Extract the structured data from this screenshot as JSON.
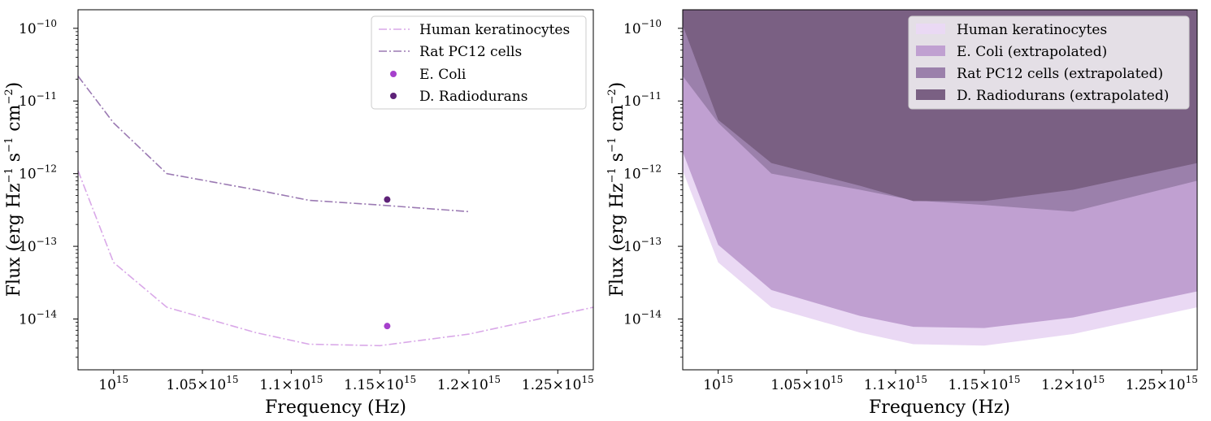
{
  "chart_data": [
    {
      "type": "line",
      "title": "",
      "xlabel": "Frequency (Hz)",
      "ylabel": "Flux (erg Hz^-1 s^-1 cm^-2)",
      "ylabel_parts": {
        "main": "Flux (erg Hz",
        "e1": "−1",
        "s": " s",
        "e2": "−1",
        "cm": " cm",
        "e3": "−2",
        "close": ")"
      },
      "yscale": "log",
      "xlim": [
        980000000000000.0,
        1270000000000000.0
      ],
      "ylim": [
        2e-15,
        1.8e-10
      ],
      "x_ticks": [
        {
          "value": 1000000000000000.0,
          "label": "10^15",
          "base": "10",
          "exp": "15"
        },
        {
          "value": 1050000000000000.0,
          "label": "1.05×10^15",
          "base": "1.05×10",
          "exp": "15"
        },
        {
          "value": 1100000000000000.0,
          "label": "1.1×10^15",
          "base": "1.1×10",
          "exp": "15"
        },
        {
          "value": 1150000000000000.0,
          "label": "1.15×10^15",
          "base": "1.15×10",
          "exp": "15"
        },
        {
          "value": 1200000000000000.0,
          "label": "1.2×10^15",
          "base": "1.2×10",
          "exp": "15"
        },
        {
          "value": 1250000000000000.0,
          "label": "1.25×10^15",
          "base": "1.25×10",
          "exp": "15"
        }
      ],
      "y_ticks": [
        {
          "value": 1e-14,
          "label": "10^-14",
          "base": "10",
          "exp": "−14"
        },
        {
          "value": 1e-13,
          "label": "10^-13",
          "base": "10",
          "exp": "−13"
        },
        {
          "value": 1e-12,
          "label": "10^-12",
          "base": "10",
          "exp": "−12"
        },
        {
          "value": 1e-11,
          "label": "10^-11",
          "base": "10",
          "exp": "−11"
        },
        {
          "value": 1e-10,
          "label": "10^-10",
          "base": "10",
          "exp": "−10"
        }
      ],
      "legend_position": "top-right",
      "series": [
        {
          "name": "Human keratinocytes",
          "kind": "line",
          "color": "#d9a8e8",
          "x": [
            980000000000000.0,
            1000000000000000.0,
            1030000000000000.0,
            1080000000000000.0,
            1110000000000000.0,
            1150000000000000.0,
            1200000000000000.0,
            1270000000000000.0
          ],
          "y": [
            1.1e-12,
            6e-14,
            1.45e-14,
            6.5e-15,
            4.5e-15,
            4.3e-15,
            6.2e-15,
            1.45e-14
          ]
        },
        {
          "name": "Rat PC12 cells",
          "kind": "line",
          "color": "#9b7ab3",
          "x": [
            980000000000000.0,
            1000000000000000.0,
            1030000000000000.0,
            1080000000000000.0,
            1110000000000000.0,
            1150000000000000.0,
            1200000000000000.0
          ],
          "y": [
            2.2e-11,
            5e-12,
            1e-12,
            6e-13,
            4.3e-13,
            3.7e-13,
            3e-13
          ]
        },
        {
          "name": "E. Coli",
          "kind": "point",
          "color": "#a640cc",
          "x": [
            1154000000000000.0
          ],
          "y": [
            8e-15
          ]
        },
        {
          "name": "D. Radiodurans",
          "kind": "point",
          "color": "#5e2278",
          "x": [
            1154000000000000.0
          ],
          "y": [
            4.4e-13
          ]
        }
      ]
    },
    {
      "type": "area",
      "title": "",
      "xlabel": "Frequency (Hz)",
      "ylabel": "Flux (erg Hz^-1 s^-1 cm^-2)",
      "ylabel_parts": {
        "main": "Flux (erg Hz",
        "e1": "−1",
        "s": " s",
        "e2": "−1",
        "cm": " cm",
        "e3": "−2",
        "close": ")"
      },
      "yscale": "log",
      "xlim": [
        980000000000000.0,
        1270000000000000.0
      ],
      "ylim": [
        2e-15,
        1.8e-10
      ],
      "x_ticks": [
        {
          "value": 1000000000000000.0,
          "label": "10^15",
          "base": "10",
          "exp": "15"
        },
        {
          "value": 1050000000000000.0,
          "label": "1.05×10^15",
          "base": "1.05×10",
          "exp": "15"
        },
        {
          "value": 1100000000000000.0,
          "label": "1.1×10^15",
          "base": "1.1×10",
          "exp": "15"
        },
        {
          "value": 1150000000000000.0,
          "label": "1.15×10^15",
          "base": "1.15×10",
          "exp": "15"
        },
        {
          "value": 1200000000000000.0,
          "label": "1.2×10^15",
          "base": "1.2×10",
          "exp": "15"
        },
        {
          "value": 1250000000000000.0,
          "label": "1.25×10^15",
          "base": "1.25×10",
          "exp": "15"
        }
      ],
      "y_ticks": [
        {
          "value": 1e-14,
          "label": "10^-14",
          "base": "10",
          "exp": "−14"
        },
        {
          "value": 1e-13,
          "label": "10^-13",
          "base": "10",
          "exp": "−13"
        },
        {
          "value": 1e-12,
          "label": "10^-12",
          "base": "10",
          "exp": "−12"
        },
        {
          "value": 1e-11,
          "label": "10^-11",
          "base": "10",
          "exp": "−11"
        },
        {
          "value": 1e-10,
          "label": "10^-10",
          "base": "10",
          "exp": "−10"
        }
      ],
      "legend_position": "top-right",
      "x": [
        980000000000000.0,
        1000000000000000.0,
        1030000000000000.0,
        1080000000000000.0,
        1110000000000000.0,
        1150000000000000.0,
        1200000000000000.0,
        1270000000000000.0
      ],
      "series": [
        {
          "name": "Human keratinocytes",
          "color": "#ead9f4",
          "lower": [
            1.1e-12,
            6e-14,
            1.45e-14,
            6.5e-15,
            4.5e-15,
            4.3e-15,
            6.2e-15,
            1.45e-14
          ]
        },
        {
          "name": "E. Coli (extrapolated)",
          "color": "#c0a0d1",
          "lower": [
            2e-12,
            1.05e-13,
            2.5e-14,
            1.1e-14,
            7.8e-15,
            7.5e-15,
            1.05e-14,
            2.4e-14
          ]
        },
        {
          "name": "Rat PC12 cells (extrapolated)",
          "color": "#9b80ab",
          "lower": [
            2.2e-11,
            5e-12,
            1e-12,
            6e-13,
            4.3e-13,
            3.7e-13,
            3e-13,
            8e-13
          ]
        },
        {
          "name": "D. Radiodurans (extrapolated)",
          "color": "#7a6083",
          "lower": [
            1.1e-10,
            5.5e-12,
            1.4e-12,
            6.8e-13,
            4.2e-13,
            4.2e-13,
            6e-13,
            1.4e-12
          ]
        }
      ]
    }
  ]
}
